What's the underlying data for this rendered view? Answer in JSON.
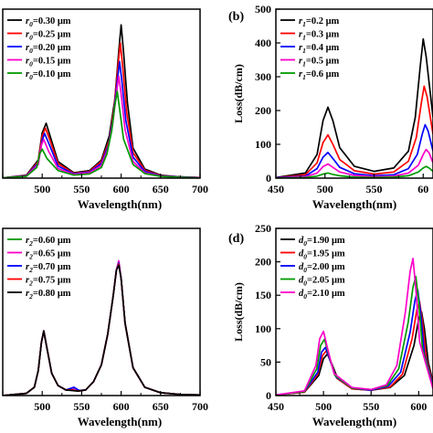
{
  "chart_data": [
    {
      "type": "line",
      "panel_label": "",
      "xlabel": "Wavelength(nm)",
      "ylabel": "",
      "xlim": [
        450,
        700
      ],
      "ylim": [
        0,
        560
      ],
      "xticks": [
        "",
        "500",
        "550",
        "600",
        "650",
        "700"
      ],
      "yticks": [],
      "grid": false,
      "legend_position": "top-left",
      "series": [
        {
          "name": "0.30 μm",
          "legend_param": "r",
          "legend_sub": "0",
          "color": "#000000",
          "x": [
            450,
            480,
            495,
            500,
            505,
            510,
            520,
            540,
            560,
            575,
            585,
            592,
            597,
            600,
            603,
            608,
            615,
            630,
            650,
            670,
            700
          ],
          "y": [
            1,
            10,
            60,
            150,
            182,
            140,
            55,
            18,
            25,
            60,
            140,
            260,
            420,
            508,
            420,
            250,
            100,
            30,
            10,
            5,
            2
          ]
        },
        {
          "name": "0.25 μm",
          "legend_param": "r",
          "legend_sub": "0",
          "color": "#ff0000",
          "x": [
            450,
            480,
            495,
            500,
            504,
            510,
            520,
            540,
            560,
            575,
            585,
            591,
            596,
            599,
            602,
            607,
            615,
            630,
            650,
            670,
            700
          ],
          "y": [
            1,
            9,
            55,
            140,
            166,
            125,
            48,
            16,
            22,
            55,
            125,
            230,
            370,
            448,
            370,
            220,
            85,
            26,
            9,
            4,
            2
          ]
        },
        {
          "name": "0.20 μm",
          "legend_param": "r",
          "legend_sub": "0",
          "color": "#0000ff",
          "x": [
            450,
            480,
            495,
            500,
            503,
            510,
            520,
            540,
            560,
            575,
            584,
            590,
            595,
            598,
            601,
            606,
            615,
            630,
            650,
            670,
            700
          ],
          "y": [
            1,
            8,
            50,
            125,
            148,
            105,
            40,
            14,
            20,
            48,
            110,
            200,
            320,
            386,
            320,
            190,
            70,
            22,
            8,
            4,
            2
          ]
        },
        {
          "name": "0.15 μm",
          "legend_param": "r",
          "legend_sub": "0",
          "color": "#ff00c8",
          "x": [
            450,
            480,
            495,
            499,
            502,
            508,
            520,
            540,
            560,
            575,
            583,
            589,
            594,
            597,
            600,
            605,
            615,
            630,
            650,
            670,
            700
          ],
          "y": [
            1,
            7,
            45,
            110,
            128,
            90,
            32,
            12,
            18,
            42,
            95,
            175,
            280,
            338,
            280,
            160,
            55,
            18,
            7,
            3,
            2
          ]
        },
        {
          "name": "0.10 μm",
          "legend_param": "r",
          "legend_sub": "0",
          "color": "#009900",
          "x": [
            450,
            480,
            493,
            497,
            500,
            506,
            520,
            540,
            560,
            575,
            582,
            588,
            592,
            595,
            598,
            603,
            615,
            630,
            650,
            670,
            700
          ],
          "y": [
            1,
            6,
            35,
            82,
            96,
            65,
            25,
            10,
            14,
            35,
            80,
            155,
            240,
            288,
            230,
            130,
            45,
            15,
            6,
            3,
            1
          ]
        }
      ]
    },
    {
      "type": "line",
      "panel_label": "(b)",
      "xlabel": "Wavelength(nm)",
      "ylabel": "Loss(dB/cm)",
      "xlim": [
        450,
        610
      ],
      "ylim": [
        0,
        500
      ],
      "xticks": [
        "450",
        "500",
        "550",
        "60"
      ],
      "yticks": [
        "0",
        "100",
        "200",
        "300",
        "400",
        "500"
      ],
      "grid": false,
      "legend_position": "top-left",
      "series": [
        {
          "name": "0.2 μm",
          "legend_param": "r",
          "legend_sub": "1",
          "color": "#000000",
          "x": [
            450,
            480,
            492,
            498,
            503,
            508,
            515,
            530,
            550,
            570,
            585,
            592,
            597,
            600,
            603,
            610
          ],
          "y": [
            2,
            15,
            70,
            170,
            210,
            170,
            90,
            35,
            20,
            30,
            80,
            180,
            330,
            412,
            360,
            180
          ]
        },
        {
          "name": "0.3 μm",
          "legend_param": "r",
          "legend_sub": "1",
          "color": "#ff0000",
          "x": [
            450,
            480,
            492,
            498,
            503,
            508,
            515,
            530,
            550,
            570,
            585,
            593,
            598,
            601,
            604,
            610
          ],
          "y": [
            1,
            10,
            45,
            105,
            128,
            100,
            55,
            22,
            12,
            18,
            50,
            120,
            220,
            272,
            240,
            130
          ]
        },
        {
          "name": "0.4 μm",
          "legend_param": "r",
          "legend_sub": "1",
          "color": "#0000ff",
          "x": [
            450,
            480,
            492,
            498,
            503,
            508,
            515,
            530,
            550,
            570,
            585,
            594,
            599,
            602,
            605,
            610
          ],
          "y": [
            1,
            6,
            28,
            62,
            76,
            58,
            32,
            13,
            7,
            10,
            28,
            70,
            130,
            158,
            140,
            80
          ]
        },
        {
          "name": "0.5 μm",
          "legend_param": "r",
          "legend_sub": "1",
          "color": "#ff00c8",
          "x": [
            450,
            480,
            492,
            498,
            503,
            508,
            515,
            530,
            550,
            570,
            585,
            595,
            600,
            603,
            606,
            610
          ],
          "y": [
            0,
            4,
            15,
            34,
            42,
            32,
            18,
            8,
            4,
            6,
            15,
            38,
            70,
            85,
            75,
            45
          ]
        },
        {
          "name": "0.6 μm",
          "legend_param": "r",
          "legend_sub": "1",
          "color": "#009900",
          "x": [
            450,
            480,
            492,
            498,
            503,
            508,
            515,
            530,
            550,
            570,
            585,
            595,
            600,
            603,
            606,
            610
          ],
          "y": [
            0,
            2,
            6,
            12,
            15,
            11,
            7,
            3,
            2,
            3,
            7,
            18,
            30,
            35,
            30,
            20
          ]
        }
      ]
    },
    {
      "type": "line",
      "panel_label": "",
      "xlabel": "Wavelength(nm)",
      "ylabel": "",
      "xlim": [
        450,
        700
      ],
      "ylim": [
        0,
        300
      ],
      "xticks": [
        "",
        "500",
        "550",
        "600",
        "650",
        "700"
      ],
      "yticks": [],
      "grid": false,
      "legend_position": "top-left",
      "series": [
        {
          "name": "0.60 μm",
          "legend_param": "r",
          "legend_sub": "2",
          "color": "#009900",
          "x": [
            450,
            480,
            490,
            495,
            499,
            502,
            506,
            512,
            520,
            530,
            538,
            545,
            555,
            565,
            575,
            583,
            590,
            594,
            597,
            600,
            605,
            615,
            630,
            650,
            675,
            700
          ],
          "y": [
            0,
            4,
            15,
            45,
            95,
            116,
            85,
            40,
            18,
            10,
            13,
            8,
            10,
            25,
            55,
            110,
            180,
            225,
            240,
            210,
            130,
            50,
            15,
            5,
            2,
            1
          ]
        },
        {
          "name": "0.65 μm",
          "legend_param": "r",
          "legend_sub": "2",
          "color": "#ff00c8",
          "x": [
            450,
            480,
            490,
            495,
            499,
            502,
            506,
            512,
            520,
            530,
            538,
            545,
            555,
            565,
            575,
            583,
            590,
            594,
            597,
            600,
            605,
            615,
            630,
            650,
            675,
            700
          ],
          "y": [
            0,
            4,
            15,
            45,
            95,
            116,
            85,
            40,
            18,
            10,
            12,
            8,
            10,
            25,
            55,
            110,
            180,
            225,
            242,
            210,
            130,
            50,
            15,
            5,
            2,
            1
          ]
        },
        {
          "name": "0.70 μm",
          "legend_param": "r",
          "legend_sub": "2",
          "color": "#0000ff",
          "x": [
            450,
            480,
            490,
            495,
            499,
            502,
            506,
            512,
            520,
            530,
            540,
            547,
            555,
            565,
            575,
            583,
            590,
            594,
            597,
            600,
            605,
            615,
            630,
            650,
            675,
            700
          ],
          "y": [
            0,
            4,
            15,
            45,
            95,
            116,
            85,
            40,
            18,
            10,
            15,
            9,
            10,
            25,
            55,
            110,
            180,
            225,
            238,
            210,
            130,
            50,
            15,
            5,
            2,
            1
          ]
        },
        {
          "name": "0.75 μm",
          "legend_param": "r",
          "legend_sub": "2",
          "color": "#ff0000",
          "x": [
            450,
            480,
            490,
            495,
            499,
            502,
            506,
            512,
            520,
            530,
            538,
            545,
            555,
            565,
            575,
            583,
            590,
            594,
            597,
            600,
            605,
            615,
            630,
            650,
            675,
            700
          ],
          "y": [
            0,
            4,
            15,
            45,
            95,
            116,
            85,
            40,
            18,
            10,
            10,
            8,
            10,
            25,
            55,
            110,
            180,
            225,
            236,
            210,
            130,
            50,
            15,
            5,
            2,
            1
          ]
        },
        {
          "name": "0.80 μm",
          "legend_param": "r",
          "legend_sub": "2",
          "color": "#000000",
          "x": [
            450,
            480,
            490,
            495,
            499,
            502,
            506,
            512,
            520,
            530,
            538,
            545,
            555,
            565,
            575,
            583,
            590,
            594,
            597,
            600,
            605,
            615,
            630,
            650,
            675,
            700
          ],
          "y": [
            0,
            4,
            15,
            45,
            95,
            116,
            85,
            40,
            18,
            10,
            9,
            8,
            10,
            25,
            55,
            110,
            180,
            225,
            234,
            210,
            130,
            50,
            15,
            5,
            2,
            1
          ]
        }
      ]
    },
    {
      "type": "line",
      "panel_label": "(d)",
      "xlabel": "Wavelength(nm)",
      "ylabel": "Loss(dB/cm)",
      "xlim": [
        450,
        615
      ],
      "ylim": [
        0,
        250
      ],
      "xticks": [
        "450",
        "500",
        "550",
        "600"
      ],
      "yticks": [
        "0",
        "50",
        "100",
        "150",
        "200",
        "250"
      ],
      "grid": false,
      "legend_position": "top-left",
      "series": [
        {
          "name": "1.90 μm",
          "legend_param": "d",
          "legend_sub": "0",
          "color": "#000000",
          "x": [
            450,
            480,
            495,
            500,
            504,
            508,
            515,
            530,
            550,
            570,
            585,
            595,
            600,
            603,
            606,
            610,
            615
          ],
          "y": [
            1,
            5,
            30,
            55,
            62,
            50,
            25,
            10,
            8,
            12,
            30,
            75,
            115,
            125,
            100,
            50,
            20
          ]
        },
        {
          "name": "1.95 μm",
          "legend_param": "d",
          "legend_sub": "0",
          "color": "#ff0000",
          "x": [
            450,
            480,
            494,
            499,
            503,
            507,
            514,
            530,
            550,
            570,
            583,
            593,
            598,
            601,
            604,
            608,
            615
          ],
          "y": [
            1,
            5,
            32,
            60,
            67,
            52,
            26,
            10,
            8,
            13,
            32,
            85,
            128,
            140,
            110,
            55,
            18
          ]
        },
        {
          "name": "2.00 μm",
          "legend_param": "d",
          "legend_sub": "0",
          "color": "#0000ff",
          "x": [
            450,
            480,
            494,
            498,
            502,
            506,
            513,
            530,
            550,
            568,
            581,
            591,
            596,
            599,
            602,
            606,
            615
          ],
          "y": [
            1,
            6,
            35,
            65,
            72,
            56,
            28,
            11,
            8,
            14,
            35,
            95,
            142,
            158,
            125,
            62,
            15
          ]
        },
        {
          "name": "2.05 μm",
          "legend_param": "d",
          "legend_sub": "0",
          "color": "#009900",
          "x": [
            450,
            480,
            493,
            497,
            501,
            505,
            512,
            530,
            550,
            567,
            579,
            589,
            594,
            597,
            600,
            604,
            615
          ],
          "y": [
            1,
            6,
            40,
            75,
            84,
            64,
            30,
            11,
            9,
            15,
            40,
            110,
            162,
            178,
            140,
            70,
            12
          ]
        },
        {
          "name": "2.10 μm",
          "legend_param": "d",
          "legend_sub": "0",
          "color": "#ff00c8",
          "x": [
            450,
            480,
            492,
            496,
            500,
            504,
            511,
            530,
            550,
            566,
            577,
            586,
            591,
            594,
            597,
            601,
            615
          ],
          "y": [
            1,
            7,
            45,
            85,
            96,
            72,
            33,
            12,
            9,
            16,
            45,
            125,
            186,
            205,
            160,
            80,
            10
          ]
        }
      ]
    }
  ]
}
